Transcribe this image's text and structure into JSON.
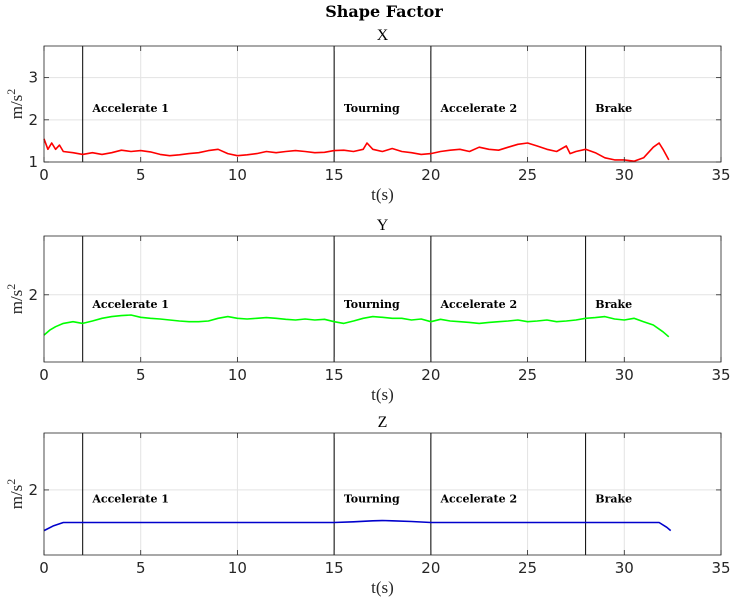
{
  "figure_title": "Shape Factor",
  "chart_data": [
    {
      "type": "line",
      "title": "X",
      "xlabel": "t(s)",
      "ylabel": "m/s",
      "ylabel_superscript": "2",
      "xlim": [
        0,
        35
      ],
      "ylim": [
        1,
        3.75
      ],
      "xticks": [
        0,
        5,
        10,
        15,
        20,
        25,
        30,
        35
      ],
      "yticks": [
        1,
        2,
        3
      ],
      "grid": true,
      "phase_lines": [
        2,
        15,
        20,
        28
      ],
      "phases": [
        {
          "label": "Accelerate 1",
          "x": 2.5
        },
        {
          "label": "Tourning",
          "x": 15.5
        },
        {
          "label": "Accelerate 2",
          "x": 20.5
        },
        {
          "label": "Brake",
          "x": 28.5
        }
      ],
      "series": [
        {
          "color": "#ff0000",
          "x": [
            0,
            0.2,
            0.4,
            0.6,
            0.8,
            1,
            1.5,
            2,
            2.5,
            3,
            3.5,
            4,
            4.5,
            5,
            5.5,
            6,
            6.5,
            7,
            7.5,
            8,
            8.5,
            9,
            9.5,
            10,
            10.5,
            11,
            11.5,
            12,
            12.5,
            13,
            13.5,
            14,
            14.5,
            15,
            15.5,
            16,
            16.5,
            16.7,
            17,
            17.5,
            18,
            18.5,
            19,
            19.5,
            20,
            20.5,
            21,
            21.5,
            22,
            22.5,
            23,
            23.5,
            24,
            24.5,
            25,
            25.5,
            26,
            26.5,
            27,
            27.2,
            27.5,
            28,
            28.5,
            29,
            29.5,
            30,
            30.5,
            31,
            31.5,
            31.8,
            32,
            32.3
          ],
          "y": [
            1.55,
            1.3,
            1.45,
            1.3,
            1.4,
            1.25,
            1.22,
            1.18,
            1.22,
            1.18,
            1.22,
            1.28,
            1.25,
            1.27,
            1.24,
            1.18,
            1.15,
            1.17,
            1.2,
            1.22,
            1.27,
            1.3,
            1.2,
            1.15,
            1.17,
            1.2,
            1.25,
            1.22,
            1.25,
            1.27,
            1.25,
            1.22,
            1.23,
            1.27,
            1.28,
            1.25,
            1.3,
            1.45,
            1.3,
            1.25,
            1.32,
            1.25,
            1.22,
            1.18,
            1.2,
            1.25,
            1.28,
            1.3,
            1.25,
            1.35,
            1.3,
            1.28,
            1.35,
            1.42,
            1.45,
            1.38,
            1.3,
            1.25,
            1.38,
            1.2,
            1.25,
            1.3,
            1.22,
            1.1,
            1.05,
            1.05,
            1.02,
            1.1,
            1.35,
            1.45,
            1.3,
            1.05
          ]
        }
      ]
    },
    {
      "type": "line",
      "title": "Y",
      "xlabel": "t(s)",
      "ylabel": "m/s",
      "ylabel_superscript": "2",
      "xlim": [
        0,
        35
      ],
      "ylim": [
        0,
        3.75
      ],
      "xticks": [
        0,
        5,
        10,
        15,
        20,
        25,
        30,
        35
      ],
      "yticks": [
        2
      ],
      "grid": true,
      "phase_lines": [
        2,
        15,
        20,
        28
      ],
      "phases": [
        {
          "label": "Accelerate 1",
          "x": 2.5
        },
        {
          "label": "Tourning",
          "x": 15.5
        },
        {
          "label": "Accelerate 2",
          "x": 20.5
        },
        {
          "label": "Brake",
          "x": 28.5
        }
      ],
      "series": [
        {
          "color": "#00ff00",
          "x": [
            0,
            0.3,
            0.6,
            1,
            1.5,
            2,
            2.5,
            3,
            3.5,
            4,
            4.5,
            5,
            5.5,
            6,
            6.5,
            7,
            7.5,
            8,
            8.5,
            9,
            9.5,
            10,
            10.5,
            11,
            11.5,
            12,
            12.5,
            13,
            13.5,
            14,
            14.5,
            15,
            15.5,
            16,
            16.5,
            17,
            17.5,
            18,
            18.5,
            19,
            19.5,
            20,
            20.5,
            21,
            21.5,
            22,
            22.5,
            23,
            23.5,
            24,
            24.5,
            25,
            25.5,
            26,
            26.5,
            27,
            27.5,
            28,
            28.5,
            29,
            29.5,
            30,
            30.5,
            31,
            31.5,
            32,
            32.3
          ],
          "y": [
            0.8,
            0.95,
            1.05,
            1.15,
            1.2,
            1.15,
            1.22,
            1.3,
            1.35,
            1.38,
            1.4,
            1.33,
            1.3,
            1.28,
            1.25,
            1.22,
            1.2,
            1.2,
            1.22,
            1.3,
            1.35,
            1.3,
            1.28,
            1.3,
            1.32,
            1.3,
            1.27,
            1.25,
            1.28,
            1.25,
            1.27,
            1.2,
            1.15,
            1.22,
            1.3,
            1.35,
            1.33,
            1.3,
            1.3,
            1.25,
            1.28,
            1.2,
            1.27,
            1.22,
            1.2,
            1.18,
            1.15,
            1.18,
            1.2,
            1.22,
            1.25,
            1.2,
            1.22,
            1.25,
            1.2,
            1.22,
            1.25,
            1.3,
            1.32,
            1.35,
            1.28,
            1.25,
            1.3,
            1.2,
            1.1,
            0.9,
            0.75
          ]
        }
      ]
    },
    {
      "type": "line",
      "title": "Z",
      "xlabel": "t(s)",
      "ylabel": "m/s",
      "ylabel_superscript": "2",
      "xlim": [
        0,
        35
      ],
      "ylim": [
        0,
        3.75
      ],
      "xticks": [
        0,
        5,
        10,
        15,
        20,
        25,
        30,
        35
      ],
      "yticks": [
        2
      ],
      "grid": true,
      "phase_lines": [
        2,
        15,
        20,
        28
      ],
      "phases": [
        {
          "label": "Accelerate 1",
          "x": 2.5
        },
        {
          "label": "Tourning",
          "x": 15.5
        },
        {
          "label": "Accelerate 2",
          "x": 20.5
        },
        {
          "label": "Brake",
          "x": 28.5
        }
      ],
      "series": [
        {
          "color": "#0000cc",
          "x": [
            0,
            0.5,
            1,
            2,
            5,
            10,
            14,
            15,
            16,
            17,
            17.5,
            18,
            19,
            20,
            25,
            28,
            30,
            31,
            31.8,
            32.2,
            32.4
          ],
          "y": [
            0.75,
            0.9,
            1.0,
            1.0,
            1.0,
            1.0,
            1.0,
            1.0,
            1.02,
            1.05,
            1.06,
            1.05,
            1.03,
            1.0,
            1.0,
            1.0,
            1.0,
            1.0,
            1.0,
            0.85,
            0.75
          ]
        }
      ]
    }
  ]
}
